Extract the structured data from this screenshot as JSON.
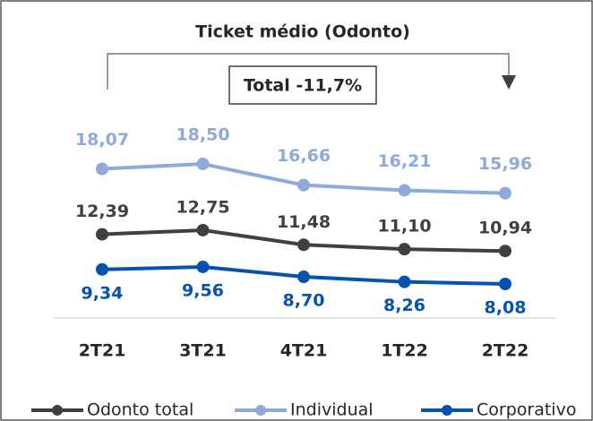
{
  "chart_data": {
    "type": "line",
    "title": "Ticket médio (Odonto)",
    "annotation": "Total -11,7%",
    "categories": [
      "2T21",
      "3T21",
      "4T21",
      "1T22",
      "2T22"
    ],
    "series": [
      {
        "name": "Odonto total",
        "color": "#404040",
        "values": [
          12.39,
          12.75,
          11.48,
          11.1,
          10.94
        ],
        "value_labels": [
          "12,39",
          "12,75",
          "11,48",
          "11,10",
          "10,94"
        ]
      },
      {
        "name": "Individual",
        "color": "#8eaadb",
        "values": [
          18.07,
          18.5,
          16.66,
          16.21,
          15.96
        ],
        "value_labels": [
          "18,07",
          "18,50",
          "16,66",
          "16,21",
          "15,96"
        ]
      },
      {
        "name": "Corporativo",
        "color": "#0652b0",
        "values": [
          9.34,
          9.56,
          8.7,
          8.26,
          8.08
        ],
        "value_labels": [
          "9,34",
          "9,56",
          "8,70",
          "8,26",
          "8,08"
        ]
      }
    ],
    "legend": "bottom"
  }
}
